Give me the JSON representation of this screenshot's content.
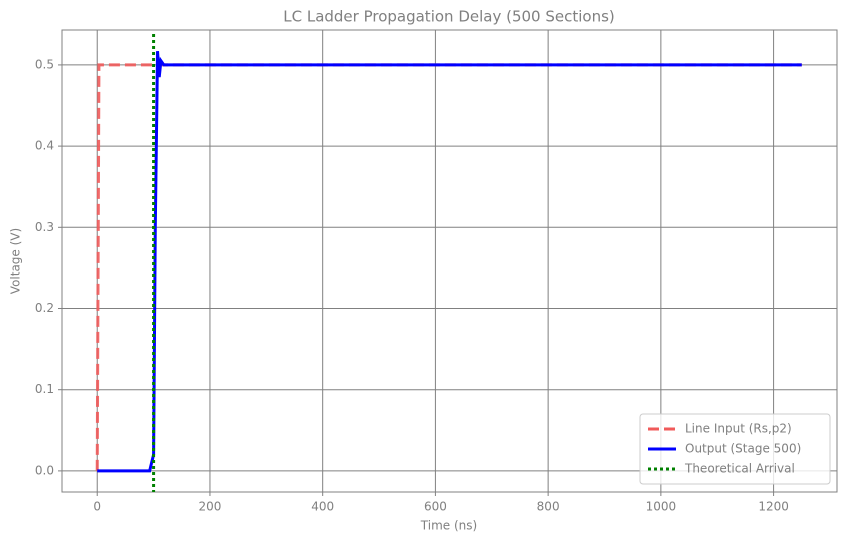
{
  "chart_data": {
    "type": "line",
    "title": "LC Ladder Propagation Delay (500 Sections)",
    "x_label": "Time (ns)",
    "y_label": "Voltage (V)",
    "xlim": [
      -62.5,
      1312.5
    ],
    "ylim": [
      -0.026,
      0.543
    ],
    "xticks": [
      0,
      200,
      400,
      600,
      800,
      1000,
      1200
    ],
    "yticks": [
      {
        "value": 0,
        "label": "0.0"
      },
      0.1,
      0.2,
      0.3,
      0.4,
      0.5
    ],
    "grid": true,
    "legend": "lower right",
    "series": [
      {
        "name": "Line Input (Rs,p2)",
        "color": "#f05a5a",
        "linestyle": "dashed",
        "x": [
          0,
          3,
          1250
        ],
        "values": [
          0,
          0.5,
          0.5
        ]
      },
      {
        "name": "Output (Stage 500)",
        "color": "#0000ff",
        "linestyle": "solid",
        "x": [
          0,
          93,
          100,
          103,
          107,
          110,
          113,
          118,
          1250
        ],
        "values": [
          0,
          0,
          0.02,
          0.3,
          0.517,
          0.485,
          0.505,
          0.5,
          0.5
        ]
      }
    ],
    "vlines": [
      {
        "name": "Theoretical Arrival",
        "color": "#008000",
        "linestyle": "dotted",
        "x": 100
      }
    ]
  }
}
